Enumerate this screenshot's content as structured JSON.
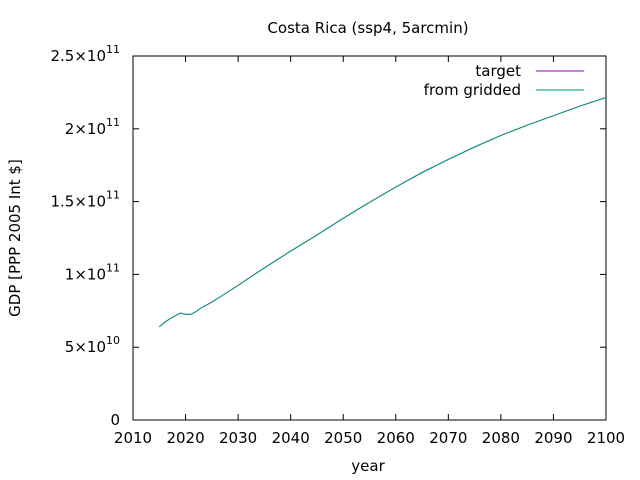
{
  "chart_data": {
    "type": "line",
    "title": "Costa Rica (ssp4, 5arcmin)",
    "xlabel": "year",
    "ylabel": "GDP [PPP 2005 Int $]",
    "xlim": [
      2010,
      2100
    ],
    "ylim": [
      0,
      250000000000
    ],
    "x_ticks": [
      2010,
      2020,
      2030,
      2040,
      2050,
      2060,
      2070,
      2080,
      2090,
      2100
    ],
    "x_tick_labels": [
      "2010",
      "2020",
      "2030",
      "2040",
      "2050",
      "2060",
      "2070",
      "2080",
      "2090",
      "2100"
    ],
    "y_ticks": [
      {
        "value": 0,
        "mantissa": "0",
        "exponent": ""
      },
      {
        "value": 50000000000,
        "mantissa": "5×10",
        "exponent": "10"
      },
      {
        "value": 100000000000,
        "mantissa": "1×10",
        "exponent": "11"
      },
      {
        "value": 150000000000,
        "mantissa": "1.5×10",
        "exponent": "11"
      },
      {
        "value": 200000000000,
        "mantissa": "2×10",
        "exponent": "11"
      },
      {
        "value": 250000000000,
        "mantissa": "2.5×10",
        "exponent": "11"
      }
    ],
    "legend_position": "top-right",
    "grid": false,
    "x": [
      2015,
      2016,
      2017,
      2018,
      2019,
      2020,
      2021,
      2022,
      2023,
      2025,
      2027,
      2030,
      2035,
      2040,
      2045,
      2050,
      2055,
      2060,
      2065,
      2070,
      2075,
      2080,
      2085,
      2090,
      2095,
      2100
    ],
    "series": [
      {
        "name": "target",
        "color": "#9400d3",
        "values": [
          64000000000,
          67000000000,
          69500000000,
          71500000000,
          73500000000,
          72500000000,
          72500000000,
          74500000000,
          77000000000,
          81000000000,
          85500000000,
          92500000000,
          104500000000,
          116000000000,
          127000000000,
          138500000000,
          149500000000,
          160000000000,
          170000000000,
          179000000000,
          187500000000,
          195500000000,
          202500000000,
          209000000000,
          215500000000,
          221500000000
        ]
      },
      {
        "name": "from gridded",
        "color": "#009e73",
        "values": [
          64000000000,
          67000000000,
          69500000000,
          71500000000,
          73500000000,
          72500000000,
          72500000000,
          74500000000,
          77000000000,
          81000000000,
          85500000000,
          92500000000,
          104500000000,
          116000000000,
          127000000000,
          138500000000,
          149500000000,
          160000000000,
          170000000000,
          179000000000,
          187500000000,
          195500000000,
          202500000000,
          209000000000,
          215500000000,
          221500000000
        ]
      }
    ]
  }
}
